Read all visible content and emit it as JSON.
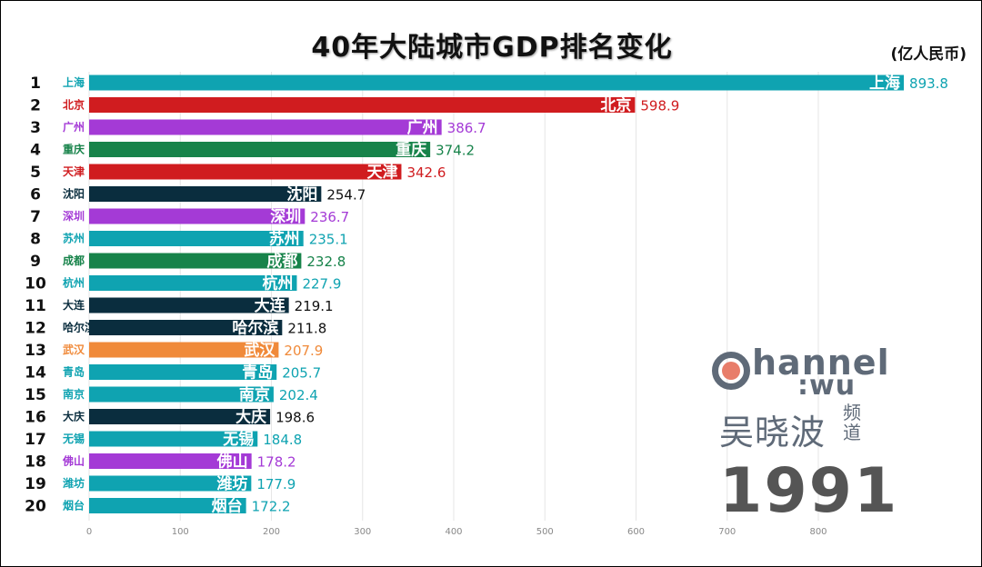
{
  "chart_data": {
    "type": "bar",
    "orientation": "horizontal",
    "title": "40年大陆城市GDP排名变化",
    "unit_label": "(亿人民币)",
    "year": "1991",
    "xlim": [
      0,
      900
    ],
    "xticks": [
      0,
      100,
      200,
      300,
      400,
      500,
      600,
      700,
      800
    ],
    "grid": true,
    "bars": [
      {
        "rank": "1",
        "city": "上海",
        "value": 893.8,
        "value_label": "893.8",
        "color": "#0fa3b1"
      },
      {
        "rank": "2",
        "city": "北京",
        "value": 598.9,
        "value_label": "598.9",
        "color": "#d01c1f"
      },
      {
        "rank": "3",
        "city": "广州",
        "value": 386.7,
        "value_label": "386.7",
        "color": "#a43ad6"
      },
      {
        "rank": "4",
        "city": "重庆",
        "value": 374.2,
        "value_label": "374.2",
        "color": "#17834a"
      },
      {
        "rank": "5",
        "city": "天津",
        "value": 342.6,
        "value_label": "342.6",
        "color": "#d01c1f"
      },
      {
        "rank": "6",
        "city": "沈阳",
        "value": 254.7,
        "value_label": "254.7",
        "color": "#0a2d3e"
      },
      {
        "rank": "7",
        "city": "深圳",
        "value": 236.7,
        "value_label": "236.7",
        "color": "#a43ad6"
      },
      {
        "rank": "8",
        "city": "苏州",
        "value": 235.1,
        "value_label": "235.1",
        "color": "#0fa3b1"
      },
      {
        "rank": "9",
        "city": "成都",
        "value": 232.8,
        "value_label": "232.8",
        "color": "#17834a"
      },
      {
        "rank": "10",
        "city": "杭州",
        "value": 227.9,
        "value_label": "227.9",
        "color": "#0fa3b1"
      },
      {
        "rank": "11",
        "city": "大连",
        "value": 219.1,
        "value_label": "219.1",
        "color": "#0a2d3e"
      },
      {
        "rank": "12",
        "city": "哈尔滨",
        "value": 211.8,
        "value_label": "211.8",
        "color": "#0a2d3e"
      },
      {
        "rank": "13",
        "city": "武汉",
        "value": 207.9,
        "value_label": "207.9",
        "color": "#f08a3a"
      },
      {
        "rank": "14",
        "city": "青岛",
        "value": 205.7,
        "value_label": "205.7",
        "color": "#0fa3b1"
      },
      {
        "rank": "15",
        "city": "南京",
        "value": 202.4,
        "value_label": "202.4",
        "color": "#0fa3b1"
      },
      {
        "rank": "16",
        "city": "大庆",
        "value": 198.6,
        "value_label": "198.6",
        "color": "#0a2d3e"
      },
      {
        "rank": "17",
        "city": "无锡",
        "value": 184.8,
        "value_label": "184.8",
        "color": "#0fa3b1"
      },
      {
        "rank": "18",
        "city": "佛山",
        "value": 178.2,
        "value_label": "178.2",
        "color": "#a43ad6"
      },
      {
        "rank": "19",
        "city": "潍坊",
        "value": 177.9,
        "value_label": "177.9",
        "color": "#0fa3b1"
      },
      {
        "rank": "20",
        "city": "烟台",
        "value": 172.2,
        "value_label": "172.2",
        "color": "#0fa3b1"
      }
    ]
  },
  "watermark": {
    "brand": "hannel",
    "sub": ":wu",
    "cn": "吴晓波",
    "suffix": "频道"
  }
}
